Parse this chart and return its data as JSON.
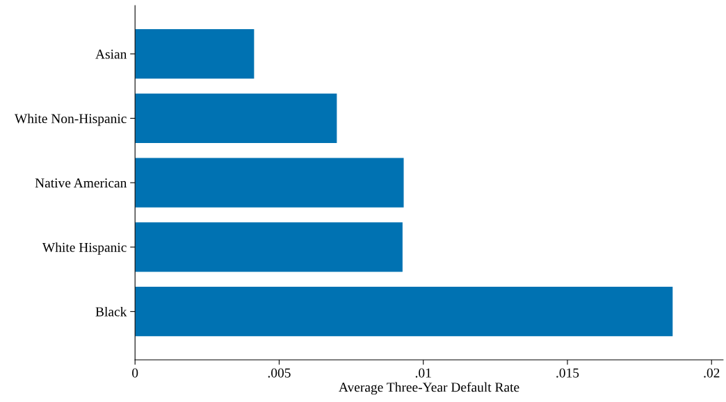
{
  "chart_data": {
    "type": "bar",
    "orientation": "horizontal",
    "categories": [
      "Asian",
      "White Non-Hispanic",
      "Native American",
      "White Hispanic",
      "Black"
    ],
    "values": [
      0.00413,
      0.007,
      0.00932,
      0.00928,
      0.01865
    ],
    "color": "#0072b2",
    "xlabel": "Average Three-Year Default Rate",
    "xlim": [
      0,
      0.0204
    ],
    "xticks": [
      0,
      {
        "value": 0.005,
        "label": ".005"
      },
      {
        "value": 0.01,
        "label": ".01"
      },
      {
        "value": 0.015,
        "label": ".015"
      },
      {
        "value": 0.02,
        "label": ".02"
      }
    ],
    "grid": false
  }
}
